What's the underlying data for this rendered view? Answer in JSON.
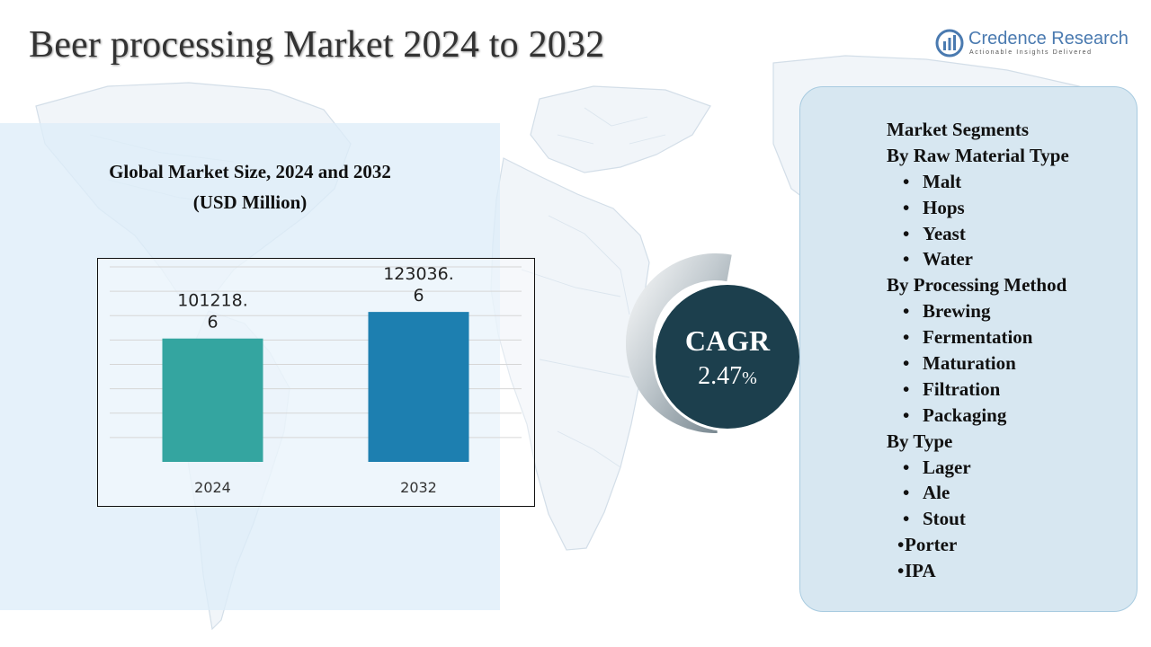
{
  "header": {
    "title": "Beer processing Market 2024 to 2032",
    "logo_name": "Credence Research",
    "logo_tagline": "Actionable Insights Delivered"
  },
  "chart_section": {
    "title_line1": "Global Market Size, 2024 and 2032",
    "title_line2": "(USD Million)"
  },
  "chart_data": {
    "type": "bar",
    "title": "Global Market Size, 2024 and 2032 (USD Million)",
    "categories": [
      "2024",
      "2032"
    ],
    "values": [
      101218.6,
      123036.6
    ],
    "data_labels": [
      [
        "101218.",
        "6"
      ],
      [
        "123036.",
        "6"
      ]
    ],
    "ylim": [
      0,
      160000
    ],
    "grid": true,
    "bar_colors": [
      "#34a5a0",
      "#1d7fb0"
    ]
  },
  "cagr": {
    "label": "CAGR",
    "value": "2.47",
    "unit": "%"
  },
  "segments": {
    "heading": "Market Segments",
    "groups": [
      {
        "title": "By Raw Material Type",
        "items": [
          "Malt",
          "Hops",
          "Yeast",
          "Water"
        ]
      },
      {
        "title": "By Processing Method",
        "items": [
          "Brewing",
          "Fermentation",
          "Maturation",
          "Filtration",
          "Packaging"
        ]
      },
      {
        "title": "By Type",
        "items": [
          "Lager",
          "Ale",
          "Stout",
          "Porter",
          "IPA"
        ]
      }
    ]
  },
  "colors": {
    "panel_bg": "#deedf8",
    "segment_panel_bg": "#d7e7f1",
    "cagr_circle": "#1c3f4d",
    "logo_blue": "#4a7ab0"
  }
}
